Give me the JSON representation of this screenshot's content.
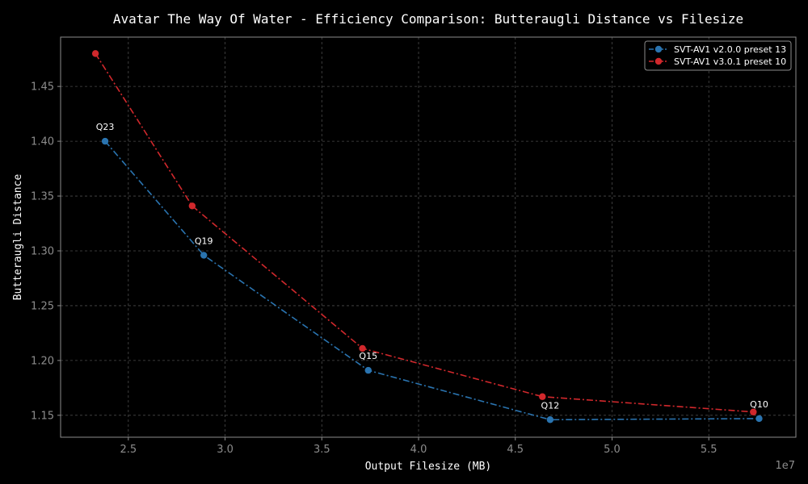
{
  "chart_data": {
    "type": "line",
    "title": "Avatar The Way Of Water - Efficiency Comparison: Butteraugli Distance vs Filesize",
    "xlabel": "Output Filesize (MB)",
    "ylabel": "Butteraugli Distance",
    "x_offset_label": "1e7",
    "xlim": [
      2.15,
      5.95
    ],
    "ylim": [
      1.13,
      1.495
    ],
    "xticks": [
      2.5,
      3.0,
      3.5,
      4.0,
      4.5,
      5.0,
      5.5
    ],
    "xtick_labels": [
      "2.5",
      "3.0",
      "3.5",
      "4.0",
      "4.5",
      "5.0",
      "5.5"
    ],
    "yticks": [
      1.15,
      1.2,
      1.25,
      1.3,
      1.35,
      1.4,
      1.45
    ],
    "ytick_labels": [
      "1.15",
      "1.20",
      "1.25",
      "1.30",
      "1.35",
      "1.40",
      "1.45"
    ],
    "grid": true,
    "legend_position": "top-right",
    "series": [
      {
        "name": "SVT-AV1 v2.0.0 preset 13",
        "color": "#2a74b0",
        "x": [
          2.38,
          2.89,
          3.74,
          4.68,
          5.76
        ],
        "y": [
          1.4,
          1.296,
          1.191,
          1.146,
          1.147
        ]
      },
      {
        "name": "SVT-AV1 v3.0.1 preset 10",
        "color": "#d1282c",
        "x": [
          2.33,
          2.83,
          3.71,
          4.64,
          5.73
        ],
        "y": [
          1.48,
          1.341,
          1.211,
          1.167,
          1.153
        ]
      }
    ],
    "annotations": [
      {
        "text": "Q23",
        "x": 2.38,
        "y": 1.4
      },
      {
        "text": "Q19",
        "x": 2.89,
        "y": 1.296
      },
      {
        "text": "Q15",
        "x": 3.74,
        "y": 1.191
      },
      {
        "text": "Q12",
        "x": 4.68,
        "y": 1.146
      },
      {
        "text": "Q10",
        "x": 5.76,
        "y": 1.147
      }
    ]
  }
}
